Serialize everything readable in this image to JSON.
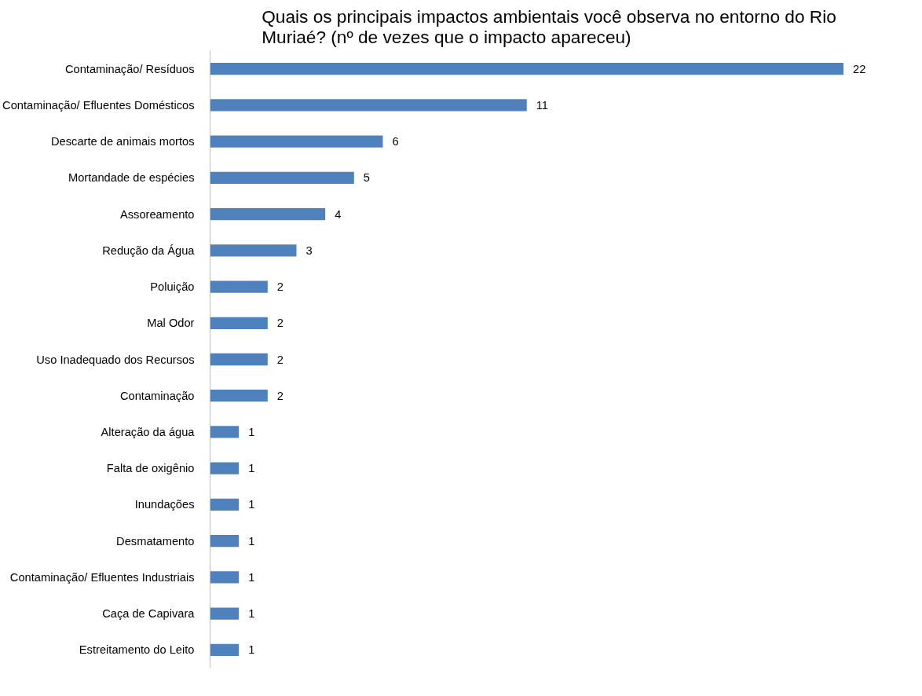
{
  "chart_data": {
    "type": "bar",
    "orientation": "horizontal",
    "title": "Quais os principais impactos ambientais você observa no entorno do Rio Muriaé? (nº de vezes que o impacto apareceu)",
    "categories": [
      "Contaminação/ Resíduos",
      "Contaminação/ Efluentes Domésticos",
      "Descarte de animais mortos",
      "Mortandade de espécies",
      "Assoreamento",
      "Redução da Água",
      "Poluição",
      "Mal Odor",
      "Uso Inadequado dos Recursos",
      "Contaminação",
      "Alteração da água",
      "Falta de oxigênio",
      "Inundações",
      "Desmatamento",
      "Contaminação/ Efluentes Industriais",
      "Caça de Capivara",
      "Estreitamento do Leito"
    ],
    "values": [
      22,
      11,
      6,
      5,
      4,
      3,
      2,
      2,
      2,
      2,
      1,
      1,
      1,
      1,
      1,
      1,
      1
    ],
    "color": "#4f81bd",
    "data_labels": true,
    "grid": false
  }
}
